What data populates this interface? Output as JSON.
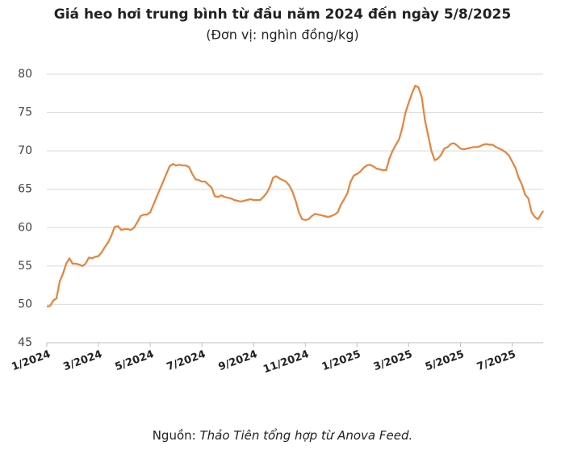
{
  "chart_data": {
    "type": "line",
    "title": "Giá heo hơi trung bình từ đầu năm 2024 đến ngày 5/8/2025",
    "subtitle": "(Đơn vị: nghìn đồng/kg)",
    "source_label": "Nguồn:",
    "source_text": "Thảo Tiên tổng hợp từ Anova Feed.",
    "xlim": [
      0,
      19.2
    ],
    "xticks": [
      {
        "value": 0,
        "label": "1/2024"
      },
      {
        "value": 2,
        "label": "3/2024"
      },
      {
        "value": 4,
        "label": "5/2024"
      },
      {
        "value": 6,
        "label": "7/2024"
      },
      {
        "value": 8,
        "label": "9/2024"
      },
      {
        "value": 10,
        "label": "11/2024"
      },
      {
        "value": 12,
        "label": "1/2025"
      },
      {
        "value": 14,
        "label": "3/2025"
      },
      {
        "value": 16,
        "label": "5/2025"
      },
      {
        "value": 18,
        "label": "7/2025"
      }
    ],
    "ylim": [
      45,
      80
    ],
    "yticks": [
      45,
      50,
      55,
      60,
      65,
      70,
      75,
      80
    ],
    "grid": true,
    "x": [
      0,
      0.125,
      0.25,
      0.375,
      0.5,
      0.625,
      0.75,
      0.875,
      1,
      1.125,
      1.25,
      1.375,
      1.5,
      1.625,
      1.75,
      1.875,
      2,
      2.125,
      2.25,
      2.375,
      2.5,
      2.625,
      2.75,
      2.875,
      3,
      3.125,
      3.25,
      3.375,
      3.5,
      3.625,
      3.75,
      3.875,
      4,
      4.125,
      4.25,
      4.375,
      4.5,
      4.625,
      4.75,
      4.875,
      5,
      5.125,
      5.25,
      5.375,
      5.5,
      5.625,
      5.75,
      5.875,
      6,
      6.125,
      6.25,
      6.375,
      6.5,
      6.625,
      6.75,
      6.875,
      7,
      7.125,
      7.25,
      7.375,
      7.5,
      7.625,
      7.75,
      7.875,
      8,
      8.125,
      8.25,
      8.375,
      8.5,
      8.625,
      8.75,
      8.875,
      9,
      9.125,
      9.25,
      9.375,
      9.5,
      9.625,
      9.75,
      9.875,
      10,
      10.125,
      10.25,
      10.375,
      10.5,
      10.625,
      10.75,
      10.875,
      11,
      11.125,
      11.25,
      11.375,
      11.5,
      11.625,
      11.75,
      11.875,
      12,
      12.125,
      12.25,
      12.375,
      12.5,
      12.625,
      12.75,
      12.875,
      13,
      13.125,
      13.25,
      13.375,
      13.5,
      13.625,
      13.75,
      13.875,
      14,
      14.125,
      14.25,
      14.375,
      14.5,
      14.625,
      14.75,
      14.875,
      15,
      15.125,
      15.25,
      15.375,
      15.5,
      15.625,
      15.75,
      15.875,
      16,
      16.125,
      16.25,
      16.375,
      16.5,
      16.625,
      16.75,
      16.875,
      17,
      17.125,
      17.25,
      17.375,
      17.5,
      17.625,
      17.75,
      17.875,
      18,
      18.125,
      18.25,
      18.375,
      18.5,
      18.625,
      18.75,
      18.875,
      19,
      19.125,
      19.2
    ],
    "series": [
      {
        "color": "#e8833a",
        "values": [
          49.7,
          49.8,
          50.5,
          50.8,
          53,
          54,
          55.3,
          56,
          55.3,
          55.3,
          55.2,
          55,
          55.3,
          56.1,
          56,
          56.2,
          56.3,
          56.8,
          57.5,
          58.1,
          59,
          60.1,
          60.2,
          59.7,
          59.8,
          59.8,
          59.7,
          60,
          60.7,
          61.5,
          61.7,
          61.7,
          62,
          63,
          64,
          65,
          66,
          67,
          68,
          68.3,
          68.1,
          68.2,
          68.1,
          68.1,
          67.9,
          67,
          66.3,
          66.2,
          66,
          66,
          65.6,
          65.2,
          64.1,
          64,
          64.2,
          64,
          63.9,
          63.8,
          63.6,
          63.5,
          63.4,
          63.5,
          63.6,
          63.7,
          63.6,
          63.6,
          63.6,
          64,
          64.5,
          65.3,
          66.5,
          66.7,
          66.4,
          66.2,
          66,
          65.5,
          64.7,
          63.5,
          62,
          61.1,
          61,
          61.1,
          61.5,
          61.8,
          61.7,
          61.6,
          61.5,
          61.4,
          61.5,
          61.7,
          62,
          63,
          63.7,
          64.5,
          66,
          66.8,
          67,
          67.3,
          67.8,
          68.1,
          68.2,
          68,
          67.7,
          67.6,
          67.5,
          67.5,
          69,
          70,
          70.8,
          71.5,
          73,
          75,
          76.3,
          77.5,
          78.5,
          78.3,
          77,
          74,
          72,
          70,
          68.8,
          69,
          69.5,
          70.3,
          70.5,
          70.9,
          71,
          70.7,
          70.3,
          70.2,
          70.3,
          70.4,
          70.5,
          70.5,
          70.6,
          70.8,
          70.9,
          70.8,
          70.8,
          70.5,
          70.3,
          70.1,
          69.8,
          69.4,
          68.6,
          67.8,
          66.5,
          65.6,
          64.3,
          63.8,
          62,
          61.4,
          61.1,
          61.8,
          62.2
        ]
      }
    ]
  }
}
